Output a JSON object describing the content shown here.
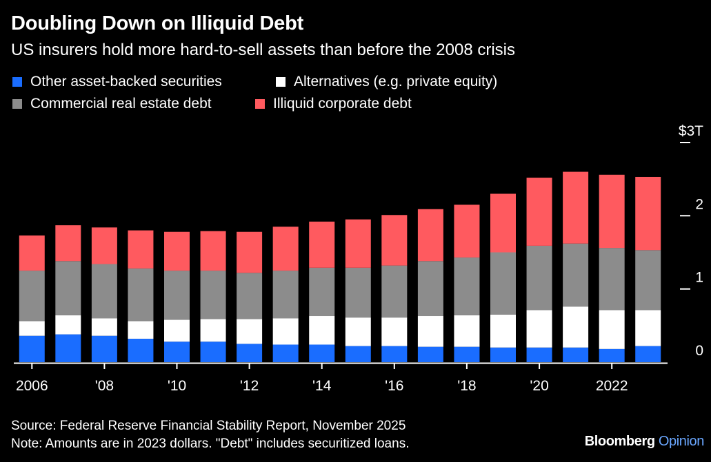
{
  "header": {
    "title": "Doubling Down on Illiquid Debt",
    "subtitle": "US insurers hold more hard-to-sell assets than before the 2008 crisis"
  },
  "footer": {
    "source": "Source: Federal Reserve Financial Stability Report, November 2025",
    "note": "Note: Amounts are in 2023 dollars. \"Debt\" includes securitized loans.",
    "brand_main": "Bloomberg",
    "brand_sub": "Opinion"
  },
  "chart_data": {
    "type": "bar",
    "stacked": true,
    "title": "Doubling Down on Illiquid Debt",
    "subtitle": "US insurers hold more hard-to-sell assets than before the 2008 crisis",
    "xlabel": "",
    "ylabel": "",
    "ylim": [
      0,
      3
    ],
    "y_ticks": [
      {
        "value": 3,
        "label": "$3T"
      },
      {
        "value": 2,
        "label": "2"
      },
      {
        "value": 1,
        "label": "1"
      },
      {
        "value": 0,
        "label": "0"
      }
    ],
    "y_axis_side": "right",
    "grid": false,
    "legend_position": "top-left",
    "categories": [
      "2006",
      "2007",
      "2008",
      "2009",
      "2010",
      "2011",
      "2012",
      "2013",
      "2014",
      "2015",
      "2016",
      "2017",
      "2018",
      "2019",
      "2020",
      "2021",
      "2022",
      "2023"
    ],
    "x_tick_labels": [
      {
        "category": "2006",
        "label": "2006"
      },
      {
        "category": "2008",
        "label": "'08"
      },
      {
        "category": "2010",
        "label": "'10"
      },
      {
        "category": "2012",
        "label": "'12"
      },
      {
        "category": "2014",
        "label": "'14"
      },
      {
        "category": "2016",
        "label": "'16"
      },
      {
        "category": "2018",
        "label": "'18"
      },
      {
        "category": "2020",
        "label": "'20"
      },
      {
        "category": "2022",
        "label": "2022"
      }
    ],
    "legend_order": [
      "Other asset-backed securities",
      "Alternatives (e.g. private equity)",
      "Commercial real estate debt",
      "Illiquid corporate debt"
    ],
    "series": [
      {
        "name": "Other asset-backed securities",
        "color": "#1a6dff",
        "values": [
          0.36,
          0.38,
          0.36,
          0.32,
          0.28,
          0.28,
          0.25,
          0.24,
          0.24,
          0.22,
          0.22,
          0.21,
          0.21,
          0.2,
          0.2,
          0.2,
          0.18,
          0.22
        ]
      },
      {
        "name": "Alternatives (e.g. private equity)",
        "color": "#ffffff",
        "values": [
          0.2,
          0.26,
          0.24,
          0.24,
          0.3,
          0.31,
          0.34,
          0.36,
          0.39,
          0.39,
          0.39,
          0.42,
          0.43,
          0.45,
          0.51,
          0.56,
          0.53,
          0.49
        ]
      },
      {
        "name": "Commercial real estate debt",
        "color": "#8c8c8c",
        "values": [
          0.69,
          0.74,
          0.74,
          0.72,
          0.67,
          0.66,
          0.63,
          0.65,
          0.66,
          0.68,
          0.71,
          0.75,
          0.79,
          0.85,
          0.88,
          0.86,
          0.85,
          0.82
        ]
      },
      {
        "name": "Illiquid corporate debt",
        "color": "#ff5a5f",
        "values": [
          0.48,
          0.49,
          0.5,
          0.52,
          0.53,
          0.54,
          0.56,
          0.6,
          0.63,
          0.66,
          0.69,
          0.71,
          0.72,
          0.8,
          0.93,
          0.98,
          1.0,
          1.0
        ]
      }
    ]
  }
}
